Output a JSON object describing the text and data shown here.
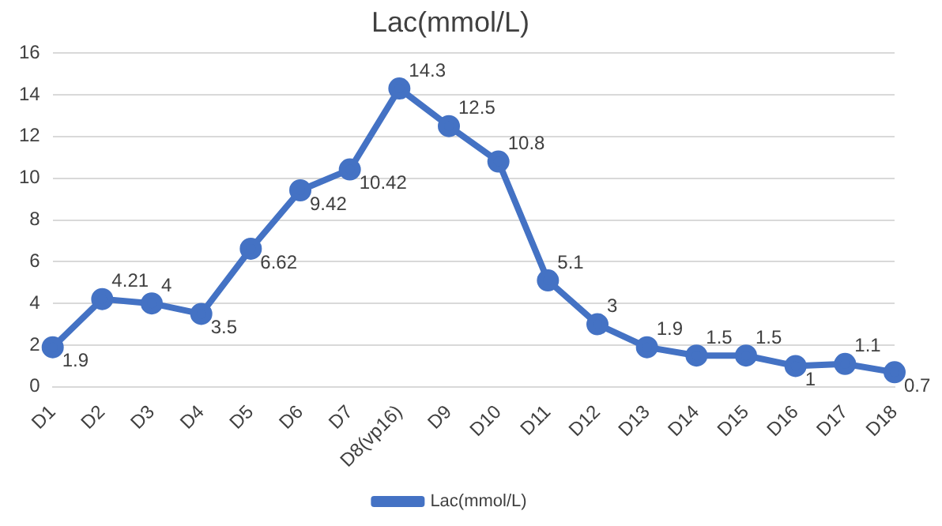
{
  "chart_data": {
    "type": "line",
    "title": "Lac(mmol/L)",
    "categories": [
      "D1",
      "D2",
      "D3",
      "D4",
      "D5",
      "D6",
      "D7",
      "D8(vp16)",
      "D9",
      "D10",
      "D11",
      "D12",
      "D13",
      "D14",
      "D15",
      "D16",
      "D17",
      "D18"
    ],
    "series": [
      {
        "name": "Lac(mmol/L)",
        "color": "#4472c4",
        "values": [
          1.9,
          4.21,
          4,
          3.5,
          6.62,
          9.42,
          10.42,
          14.3,
          12.5,
          10.8,
          5.1,
          3,
          1.9,
          1.5,
          1.5,
          1,
          1.1,
          0.7
        ]
      }
    ],
    "ylim": [
      0,
      16
    ],
    "yticks": [
      0,
      2,
      4,
      6,
      8,
      10,
      12,
      14,
      16
    ],
    "grid": "y",
    "legend": "bottom",
    "marker": "circle",
    "line_style": "solid",
    "data_labels": true
  }
}
